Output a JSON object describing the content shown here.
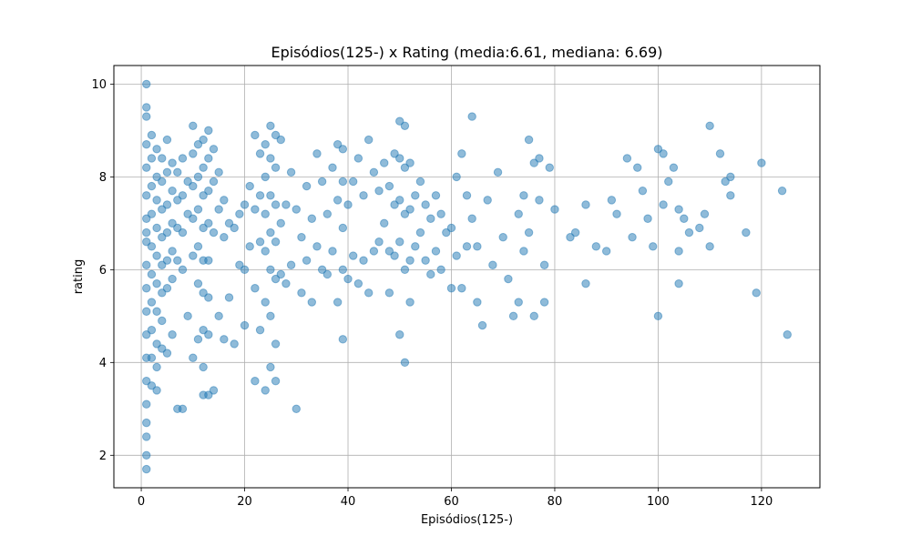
{
  "chart_data": {
    "type": "scatter",
    "title": "Episódios(125-) x Rating (media:6.61, mediana: 6.69)",
    "xlabel": "Episódios(125-)",
    "ylabel": "rating",
    "xlim": [
      -5.3,
      131.3
    ],
    "ylim": [
      1.3,
      10.4
    ],
    "xticks": [
      0,
      20,
      40,
      60,
      80,
      100,
      120
    ],
    "yticks": [
      2,
      4,
      6,
      8,
      10
    ],
    "grid": true,
    "marker_color": "#1f77b4",
    "marker_alpha": 0.5,
    "series": [
      {
        "x": [
          1,
          1,
          1,
          1,
          1,
          1,
          1,
          1,
          1,
          1,
          1,
          1,
          1,
          1,
          1,
          1,
          1,
          1,
          1,
          1,
          2,
          2,
          2,
          2,
          2,
          2,
          2,
          2,
          2,
          2,
          3,
          3,
          3,
          3,
          3,
          3,
          3,
          3,
          3,
          3,
          4,
          4,
          4,
          4,
          4,
          4,
          4,
          4,
          5,
          5,
          5,
          5,
          5,
          5,
          5,
          6,
          6,
          6,
          6,
          6,
          6,
          7,
          7,
          7,
          7,
          7,
          8,
          8,
          8,
          8,
          8,
          9,
          9,
          9,
          10,
          10,
          10,
          10,
          10,
          10,
          11,
          11,
          11,
          11,
          11,
          11,
          12,
          12,
          12,
          12,
          12,
          12,
          12,
          12,
          12,
          13,
          13,
          13,
          13,
          13,
          13,
          13,
          13,
          14,
          14,
          14,
          14,
          15,
          15,
          15,
          16,
          16,
          16,
          17,
          17,
          18,
          18,
          19,
          19,
          20,
          20,
          20,
          21,
          21,
          22,
          22,
          22,
          22,
          23,
          23,
          23,
          23,
          24,
          24,
          24,
          24,
          24,
          24,
          25,
          25,
          25,
          25,
          25,
          25,
          25,
          26,
          26,
          26,
          26,
          26,
          26,
          26,
          27,
          27,
          27,
          28,
          28,
          29,
          29,
          30,
          30,
          31,
          31,
          32,
          32,
          33,
          33,
          34,
          34,
          35,
          35,
          36,
          36,
          37,
          37,
          38,
          38,
          38,
          39,
          39,
          39,
          39,
          39,
          40,
          40,
          41,
          41,
          42,
          42,
          43,
          43,
          44,
          44,
          45,
          45,
          46,
          46,
          47,
          47,
          48,
          48,
          48,
          49,
          49,
          49,
          50,
          50,
          50,
          50,
          50,
          51,
          51,
          51,
          51,
          51,
          52,
          52,
          52,
          52,
          53,
          53,
          54,
          54,
          55,
          55,
          56,
          56,
          57,
          57,
          58,
          58,
          59,
          60,
          60,
          61,
          61,
          62,
          62,
          63,
          63,
          64,
          64,
          65,
          65,
          66,
          67,
          68,
          69,
          70,
          71,
          72,
          73,
          73,
          74,
          74,
          75,
          75,
          76,
          76,
          77,
          77,
          78,
          78,
          79,
          80,
          83,
          84,
          86,
          86,
          88,
          90,
          91,
          92,
          94,
          95,
          96,
          97,
          98,
          99,
          100,
          100,
          101,
          101,
          102,
          103,
          104,
          104,
          104,
          105,
          106,
          108,
          109,
          110,
          110,
          112,
          113,
          114,
          114,
          117,
          119,
          120,
          124,
          125
        ],
        "y": [
          10.0,
          9.5,
          9.3,
          8.7,
          8.2,
          7.6,
          7.1,
          6.6,
          6.1,
          5.6,
          5.1,
          4.6,
          4.1,
          3.6,
          3.1,
          2.7,
          2.4,
          2.0,
          1.7,
          6.8,
          8.9,
          8.4,
          7.8,
          7.2,
          6.5,
          5.9,
          5.3,
          4.7,
          4.1,
          3.5,
          8.6,
          8.0,
          7.5,
          6.9,
          6.3,
          5.7,
          5.1,
          4.4,
          3.9,
          3.4,
          8.4,
          7.9,
          7.3,
          6.7,
          6.1,
          5.5,
          4.9,
          4.3,
          8.8,
          8.1,
          7.4,
          6.8,
          6.2,
          5.6,
          4.2,
          8.3,
          7.7,
          7.0,
          6.4,
          5.8,
          4.6,
          8.1,
          7.5,
          6.9,
          6.2,
          3.0,
          8.4,
          7.6,
          6.8,
          6.0,
          3.0,
          7.9,
          7.2,
          5.0,
          9.1,
          8.5,
          7.8,
          7.1,
          6.3,
          4.1,
          8.7,
          8.0,
          7.3,
          6.5,
          5.7,
          4.5,
          8.8,
          8.2,
          7.6,
          6.9,
          6.2,
          5.5,
          4.7,
          3.9,
          3.3,
          9.0,
          8.4,
          7.7,
          7.0,
          6.2,
          5.4,
          4.6,
          3.3,
          8.6,
          7.9,
          6.8,
          3.4,
          8.1,
          7.3,
          5.0,
          7.5,
          6.7,
          4.5,
          7.0,
          5.4,
          6.9,
          4.4,
          7.2,
          6.1,
          7.4,
          6.0,
          4.8,
          7.8,
          6.5,
          8.9,
          7.3,
          5.6,
          3.6,
          8.5,
          7.6,
          6.6,
          4.7,
          8.7,
          8.0,
          7.2,
          6.4,
          5.3,
          3.4,
          9.1,
          8.4,
          7.6,
          6.8,
          6.0,
          5.0,
          3.9,
          8.9,
          8.2,
          7.4,
          6.6,
          5.8,
          4.4,
          3.6,
          8.8,
          7.0,
          5.9,
          7.4,
          5.7,
          8.1,
          6.1,
          7.3,
          3.0,
          6.7,
          5.5,
          7.8,
          6.2,
          7.1,
          5.3,
          8.5,
          6.5,
          7.9,
          6.0,
          7.2,
          5.9,
          8.2,
          6.4,
          8.7,
          7.5,
          5.3,
          8.6,
          7.9,
          6.9,
          6.0,
          4.5,
          7.4,
          5.8,
          7.9,
          6.3,
          8.4,
          5.7,
          7.6,
          6.2,
          8.8,
          5.5,
          8.1,
          6.4,
          7.7,
          6.6,
          8.3,
          7.0,
          7.8,
          6.4,
          5.5,
          8.5,
          7.4,
          6.3,
          9.2,
          8.4,
          7.5,
          6.6,
          4.6,
          9.1,
          8.2,
          7.2,
          6.0,
          4.0,
          8.3,
          7.3,
          6.2,
          5.3,
          7.6,
          6.5,
          7.9,
          6.8,
          7.4,
          6.2,
          7.1,
          5.9,
          7.6,
          6.4,
          7.2,
          6.0,
          6.8,
          6.9,
          5.6,
          8.0,
          6.3,
          8.5,
          5.6,
          7.6,
          6.5,
          9.3,
          7.1,
          6.5,
          5.3,
          4.8,
          7.5,
          6.1,
          8.1,
          6.7,
          5.8,
          5.0,
          7.2,
          5.3,
          6.4,
          7.6,
          8.8,
          6.8,
          8.3,
          5.0,
          8.4,
          7.5,
          6.1,
          5.3,
          8.2,
          7.3,
          6.7,
          6.8,
          7.4,
          5.7,
          6.5,
          6.4,
          7.5,
          7.2,
          8.4,
          6.7,
          8.2,
          7.7,
          7.1,
          6.5,
          8.6,
          5.0,
          8.5,
          7.4,
          7.9,
          8.2,
          7.3,
          6.4,
          5.7,
          7.1,
          6.8,
          6.9,
          7.2,
          9.1,
          6.5,
          8.5,
          7.9,
          8.0,
          7.6,
          6.8,
          5.5,
          8.3,
          7.7,
          4.6
        ]
      }
    ]
  }
}
